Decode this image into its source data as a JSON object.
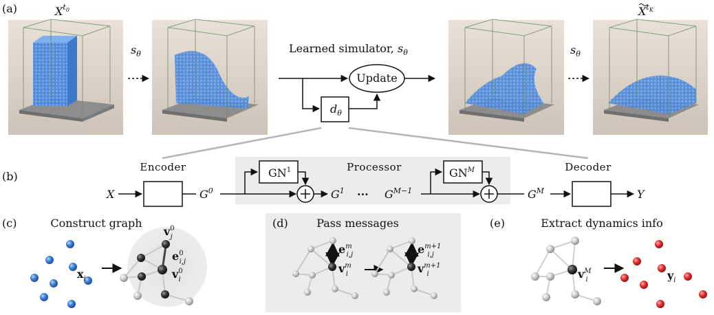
{
  "panel_labels": {
    "a": "(a)",
    "b": "(b)",
    "c": "(c)",
    "d": "(d)",
    "e": "(e)"
  },
  "panel_a": {
    "start_state": {
      "base": "X",
      "sup": "t",
      "sup_sub": "0"
    },
    "end_state": {
      "base": "X",
      "sup": "t",
      "sup_sub": "K"
    },
    "simulator_symbol": {
      "base": "s",
      "sub": "θ"
    },
    "learned_simulator_label": "Learned simulator, ",
    "update_label": "Update",
    "d_symbol": {
      "base": "d",
      "sub": "θ"
    }
  },
  "panel_b": {
    "encoder_title": "Encoder",
    "processor_title": "Processor",
    "decoder_title": "Decoder",
    "input": "X",
    "output": "Y",
    "gn_first": {
      "base": "GN",
      "sup": "1"
    },
    "gn_last": {
      "base": "GN",
      "sup": "M"
    },
    "g0": {
      "base": "G",
      "sup": "0"
    },
    "g1": {
      "base": "G",
      "sup": "1"
    },
    "dots": "···",
    "gm_minus_1": {
      "base": "G",
      "sup": "M−1"
    },
    "gm": {
      "base": "G",
      "sup": "M"
    }
  },
  "panel_c": {
    "title": "Construct graph",
    "x_i": {
      "base": "x",
      "sub": "i"
    },
    "v_j": {
      "base": "v",
      "sup": "0",
      "sub": "j"
    },
    "e_ij": {
      "base": "e",
      "sup": "0",
      "sub": "i,j"
    },
    "v_i": {
      "base": "v",
      "sup": "0",
      "sub": "i"
    }
  },
  "panel_d": {
    "title": "Pass messages",
    "e_left": {
      "base": "e",
      "sup": "m",
      "sub": "i,j"
    },
    "v_left": {
      "base": "v",
      "sup": "m",
      "sub": "i"
    },
    "e_right": {
      "base": "e",
      "sup": "m+1",
      "sub": "i,j"
    },
    "v_right": {
      "base": "v",
      "sup": "m+1",
      "sub": "i"
    }
  },
  "panel_e": {
    "title": "Extract dynamics info",
    "v_i": {
      "base": "v",
      "sup": "M",
      "sub": "i"
    },
    "y_i": {
      "base": "y",
      "sub": "i"
    }
  },
  "colors": {
    "particle_blue": "#3a7bd5",
    "particle_red": "#e02a2a",
    "node_gray": "#bdbdbd",
    "node_dark": "#333333",
    "panel_bg": "#ececec"
  }
}
